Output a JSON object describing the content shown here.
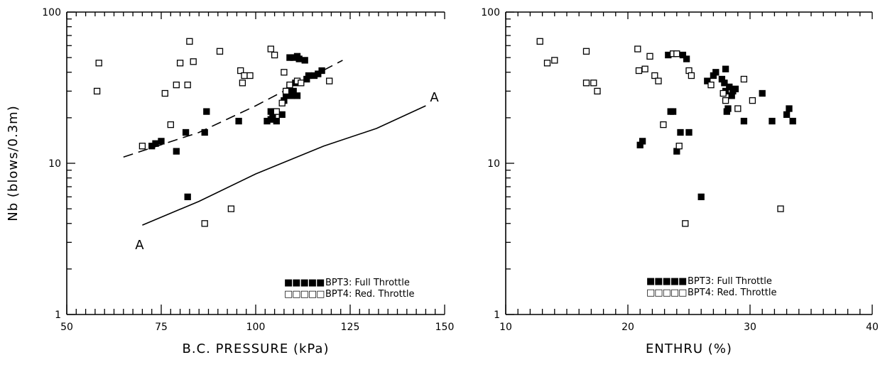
{
  "chart_data": [
    {
      "type": "scatter",
      "xlabel": "B.C. PRESSURE (kPa)",
      "ylabel": "Nb (blows/0.3m)",
      "xlim": [
        50,
        150
      ],
      "ylim": [
        1,
        100
      ],
      "yscale": "log",
      "xticks": [
        "50",
        "75",
        "100",
        "125",
        "150"
      ],
      "yticks": [
        "1",
        "10",
        "100"
      ],
      "legend_position": "bottom-right",
      "series": [
        {
          "name": "BPT3: Full Throttle",
          "marker": "filled-square",
          "legend_marker": "■■■■■",
          "points": [
            [
              72.5,
              13
            ],
            [
              73.5,
              13.5
            ],
            [
              75,
              14
            ],
            [
              79,
              12
            ],
            [
              81.5,
              16
            ],
            [
              82,
              6
            ],
            [
              86.5,
              16
            ],
            [
              87,
              22
            ],
            [
              95.5,
              19
            ],
            [
              103,
              19
            ],
            [
              104,
              22
            ],
            [
              104,
              19.5
            ],
            [
              104.5,
              20
            ],
            [
              105,
              22
            ],
            [
              105.5,
              19
            ],
            [
              107,
              21
            ],
            [
              107.5,
              26
            ],
            [
              108,
              28
            ],
            [
              108.5,
              30
            ],
            [
              109,
              32
            ],
            [
              109.5,
              28
            ],
            [
              110,
              30
            ],
            [
              110.5,
              34
            ],
            [
              111,
              28
            ],
            [
              109,
              50
            ],
            [
              110,
              50
            ],
            [
              111,
              51
            ],
            [
              111.5,
              49
            ],
            [
              113,
              48
            ],
            [
              113.5,
              36
            ],
            [
              114,
              38
            ],
            [
              115.5,
              38
            ],
            [
              116.5,
              39
            ],
            [
              117.5,
              41
            ]
          ]
        },
        {
          "name": "BPT4: Red. Throttle",
          "marker": "open-square",
          "legend_marker": "□□□□□",
          "points": [
            [
              58,
              30
            ],
            [
              58.5,
              46
            ],
            [
              70,
              13
            ],
            [
              76,
              29
            ],
            [
              77.5,
              18
            ],
            [
              79,
              33
            ],
            [
              80,
              46
            ],
            [
              82,
              33
            ],
            [
              82.5,
              64
            ],
            [
              83.5,
              47
            ],
            [
              86.5,
              4
            ],
            [
              90.5,
              55
            ],
            [
              93.5,
              5
            ],
            [
              96,
              41
            ],
            [
              96.5,
              34
            ],
            [
              97,
              38
            ],
            [
              98.5,
              38
            ],
            [
              104,
              57
            ],
            [
              105,
              52
            ],
            [
              105.5,
              22
            ],
            [
              107,
              25
            ],
            [
              107.5,
              40
            ],
            [
              108,
              30
            ],
            [
              109,
              33
            ],
            [
              111,
              35
            ],
            [
              112,
              34
            ],
            [
              119.5,
              35
            ]
          ]
        }
      ],
      "annotations": [
        {
          "style": "dashed",
          "points": [
            [
              65,
              11
            ],
            [
              85,
              16
            ],
            [
              100,
              24
            ],
            [
              123,
              48
            ]
          ]
        },
        {
          "style": "solid",
          "label": "A",
          "points": [
            [
              70,
              3.9
            ],
            [
              85,
              5.6
            ],
            [
              100,
              8.5
            ],
            [
              118,
              13
            ],
            [
              132,
              17
            ],
            [
              145,
              24
            ]
          ]
        }
      ]
    },
    {
      "type": "scatter",
      "xlabel": "ENTHRU (%)",
      "ylabel": "",
      "xlim": [
        10,
        40
      ],
      "ylim": [
        1,
        100
      ],
      "yscale": "log",
      "xticks": [
        "10",
        "20",
        "30",
        "40"
      ],
      "yticks": [
        "1",
        "10",
        "100"
      ],
      "legend_position": "bottom-right",
      "series": [
        {
          "name": "BPT3: Full Throttle",
          "marker": "filled-square",
          "legend_marker": "■■■■■",
          "points": [
            [
              21,
              13.2
            ],
            [
              21.2,
              14
            ],
            [
              23.3,
              52
            ],
            [
              23.5,
              22
            ],
            [
              23.7,
              22
            ],
            [
              24,
              12
            ],
            [
              24.3,
              16
            ],
            [
              24.5,
              52
            ],
            [
              24.8,
              49
            ],
            [
              25,
              16
            ],
            [
              26,
              6
            ],
            [
              26.5,
              35
            ],
            [
              27,
              38
            ],
            [
              27.2,
              40
            ],
            [
              27.7,
              36
            ],
            [
              27.9,
              34
            ],
            [
              28,
              30
            ],
            [
              28.1,
              22
            ],
            [
              28.2,
              23
            ],
            [
              28.3,
              32
            ],
            [
              28.5,
              28
            ],
            [
              28.6,
              30
            ],
            [
              28.8,
              31
            ],
            [
              28,
              42
            ],
            [
              29.5,
              19
            ],
            [
              31,
              29
            ],
            [
              31.8,
              19
            ],
            [
              33,
              21
            ],
            [
              33.2,
              23
            ],
            [
              33.5,
              19
            ]
          ]
        },
        {
          "name": "BPT4: Red. Throttle",
          "marker": "open-square",
          "legend_marker": "□□□□□",
          "points": [
            [
              12.8,
              64
            ],
            [
              13.4,
              46
            ],
            [
              14,
              48
            ],
            [
              16.6,
              55
            ],
            [
              16.6,
              34
            ],
            [
              17.2,
              34
            ],
            [
              17.5,
              30
            ],
            [
              20.8,
              57
            ],
            [
              20.9,
              41
            ],
            [
              21.4,
              42
            ],
            [
              21.8,
              51
            ],
            [
              22.2,
              38
            ],
            [
              22.5,
              35
            ],
            [
              22.9,
              18
            ],
            [
              23.7,
              53
            ],
            [
              24,
              53
            ],
            [
              24.2,
              13
            ],
            [
              24.7,
              4
            ],
            [
              25,
              41
            ],
            [
              25.2,
              38
            ],
            [
              26.8,
              33
            ],
            [
              27.8,
              29
            ],
            [
              28,
              26
            ],
            [
              29,
              23
            ],
            [
              29.5,
              36
            ],
            [
              30.2,
              26
            ],
            [
              32.5,
              5
            ]
          ]
        }
      ]
    }
  ]
}
